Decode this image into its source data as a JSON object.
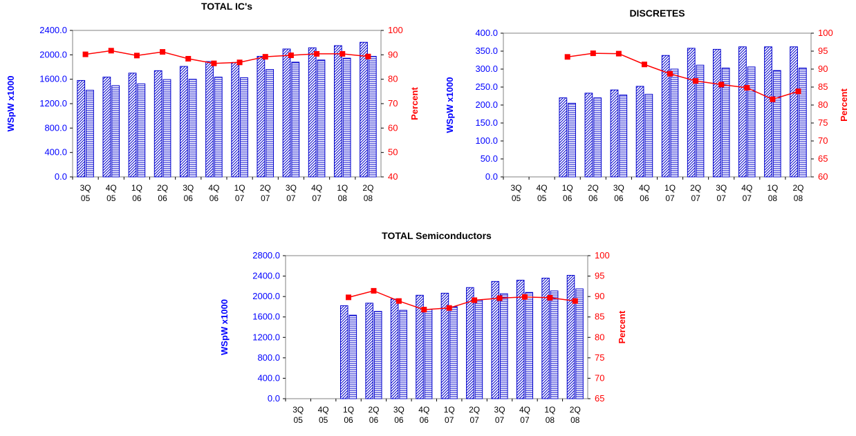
{
  "colors": {
    "left_axis": "#0000ff",
    "right_axis": "#ff0000",
    "bar_fill": "#ffffff",
    "bar_stroke": "#0000cc",
    "line": "#ff0000"
  },
  "chart_data": [
    {
      "type": "bar+line",
      "title": "TOTAL IC's",
      "ylabel": "WSpW x1000",
      "y2label": "Percent",
      "categories": [
        [
          "3Q",
          "05"
        ],
        [
          "4Q",
          "05"
        ],
        [
          "1Q",
          "06"
        ],
        [
          "2Q",
          "06"
        ],
        [
          "3Q",
          "06"
        ],
        [
          "4Q",
          "06"
        ],
        [
          "1Q",
          "07"
        ],
        [
          "2Q",
          "07"
        ],
        [
          "3Q",
          "07"
        ],
        [
          "4Q",
          "07"
        ],
        [
          "1Q",
          "08"
        ],
        [
          "2Q",
          "08"
        ]
      ],
      "ylim": [
        0,
        2400
      ],
      "yticks": [
        "0.0",
        "400.0",
        "800.0",
        "1200.0",
        "1600.0",
        "2000.0",
        "2400.0"
      ],
      "y2lim": [
        40,
        100
      ],
      "y2ticks": [
        "40",
        "50",
        "60",
        "70",
        "80",
        "90",
        "100"
      ],
      "series_diag": [
        1580,
        1635,
        1700,
        1740,
        1810,
        1890,
        1875,
        1975,
        2095,
        2115,
        2150,
        2205
      ],
      "series_horiz": [
        1420,
        1495,
        1525,
        1595,
        1600,
        1635,
        1625,
        1760,
        1880,
        1915,
        1945,
        1975
      ],
      "line": [
        90.2,
        91.7,
        89.7,
        91.2,
        88.4,
        86.5,
        86.9,
        89.2,
        89.8,
        90.4,
        90.4,
        89.3
      ]
    },
    {
      "type": "bar+line",
      "title": "DISCRETES",
      "ylabel": "WSpW x1000",
      "y2label": "Percent",
      "categories": [
        [
          "3Q",
          "05"
        ],
        [
          "4Q",
          "05"
        ],
        [
          "1Q",
          "06"
        ],
        [
          "2Q",
          "06"
        ],
        [
          "3Q",
          "06"
        ],
        [
          "4Q",
          "06"
        ],
        [
          "1Q",
          "07"
        ],
        [
          "2Q",
          "07"
        ],
        [
          "3Q",
          "07"
        ],
        [
          "4Q",
          "07"
        ],
        [
          "1Q",
          "08"
        ],
        [
          "2Q",
          "08"
        ]
      ],
      "ylim": [
        0,
        400
      ],
      "yticks": [
        "0.0",
        "50.0",
        "100.0",
        "150.0",
        "200.0",
        "250.0",
        "300.0",
        "350.0",
        "400.0"
      ],
      "y2lim": [
        60,
        100
      ],
      "y2ticks": [
        "60",
        "65",
        "70",
        "75",
        "80",
        "85",
        "90",
        "95",
        "100"
      ],
      "series_diag": [
        null,
        null,
        220,
        233,
        242,
        252,
        338,
        358,
        355,
        362,
        362,
        362
      ],
      "series_horiz": [
        null,
        null,
        205,
        220,
        228,
        230,
        300,
        311,
        303,
        306,
        296,
        303
      ],
      "line": [
        null,
        null,
        93.4,
        94.4,
        94.3,
        91.3,
        88.7,
        86.7,
        85.7,
        84.8,
        81.6,
        83.8
      ]
    },
    {
      "type": "bar+line",
      "title": "TOTAL Semiconductors",
      "ylabel": "WSpW x1000",
      "y2label": "Percent",
      "categories": [
        [
          "3Q",
          "05"
        ],
        [
          "4Q",
          "05"
        ],
        [
          "1Q",
          "06"
        ],
        [
          "2Q",
          "06"
        ],
        [
          "3Q",
          "06"
        ],
        [
          "4Q",
          "06"
        ],
        [
          "1Q",
          "07"
        ],
        [
          "2Q",
          "07"
        ],
        [
          "3Q",
          "07"
        ],
        [
          "4Q",
          "07"
        ],
        [
          "1Q",
          "08"
        ],
        [
          "2Q",
          "08"
        ]
      ],
      "ylim": [
        0,
        2800
      ],
      "yticks": [
        "0.0",
        "400.0",
        "800.0",
        "1200.0",
        "1600.0",
        "2000.0",
        "2400.0",
        "2800.0"
      ],
      "y2lim": [
        65,
        100
      ],
      "y2ticks": [
        "65",
        "70",
        "75",
        "80",
        "85",
        "90",
        "95",
        "100"
      ],
      "series_diag": [
        null,
        null,
        1820,
        1870,
        1950,
        2025,
        2065,
        2175,
        2295,
        2320,
        2360,
        2415
      ],
      "series_horiz": [
        null,
        null,
        1635,
        1710,
        1730,
        1750,
        1800,
        1930,
        2055,
        2080,
        2110,
        2150
      ],
      "line": [
        null,
        null,
        89.8,
        91.4,
        88.9,
        86.8,
        87.2,
        89.1,
        89.6,
        89.9,
        89.7,
        88.9
      ]
    }
  ]
}
